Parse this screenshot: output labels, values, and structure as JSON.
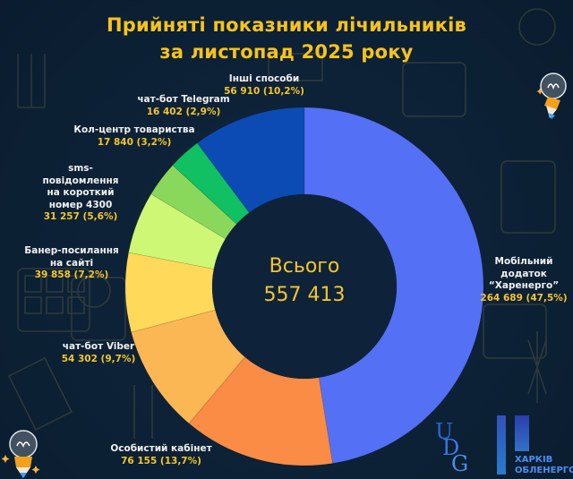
{
  "title": {
    "line1": "Прийняті показники лічильників",
    "line2": "за листопад 2025 року"
  },
  "center": {
    "label": "Всього",
    "value": "557 413"
  },
  "colors": {
    "background": "#0d2236",
    "title": "#f7c21b",
    "value_text": "#f5c52a",
    "label_text": "#f1f1f1"
  },
  "chart_data": {
    "type": "pie",
    "variant": "donut",
    "title": "Прийняті показники лічильників за листопад 2025 року",
    "total_label": "Всього",
    "total": 557413,
    "start_angle": "12 o'clock",
    "direction": "clockwise",
    "slices": [
      {
        "name": "Мобільний додаток “Харенерго”",
        "value": 264689,
        "percent": 47.5,
        "color": "#5470f5",
        "label": "264 689 (47,5%)"
      },
      {
        "name": "Особистий кабінет",
        "value": 76155,
        "percent": 13.7,
        "color": "#fa8c45",
        "label": "76 155 (13,7%)"
      },
      {
        "name": "чат-бот Viber",
        "value": 54302,
        "percent": 9.7,
        "color": "#fbb753",
        "label": "54 302 (9,7%)"
      },
      {
        "name": "Банер-посилання на сайті",
        "value": 39858,
        "percent": 7.2,
        "color": "#fed95a",
        "label": "39 858 (7,2%)"
      },
      {
        "name": "sms-повідомлення на короткий номер 4300",
        "value": 31257,
        "percent": 5.6,
        "color": "#cdf775",
        "label": "31 257 (5,6%)"
      },
      {
        "name": "Кол-центр товариства",
        "value": 17840,
        "percent": 3.2,
        "color": "#8ad85b",
        "label": "17 840 (3,2%)"
      },
      {
        "name": "чат-бот Telegram",
        "value": 16402,
        "percent": 2.9,
        "color": "#10c062",
        "label": "16 402 (2,9%)"
      },
      {
        "name": "Інші способи",
        "value": 56910,
        "percent": 10.2,
        "color": "#0d4bb4",
        "label": "56 910 (10,2%)"
      }
    ],
    "legend": "direct labels around the ring"
  },
  "labels": [
    {
      "name_lines": [
        "Мобільний",
        "додаток",
        "“Харенерго”"
      ],
      "value": "264 689 (47,5%)"
    },
    {
      "name_lines": [
        "Особистий кабінет"
      ],
      "value": "76 155 (13,7%)"
    },
    {
      "name_lines": [
        "чат-бот Viber"
      ],
      "value": "54 302 (9,7%)"
    },
    {
      "name_lines": [
        "Банер-посилання",
        "на сайті"
      ],
      "value": "39 858 (7,2%)"
    },
    {
      "name_lines": [
        "sms-повідомлення",
        "на короткий",
        "номер 4300"
      ],
      "value": "31 257 (5,6%)"
    },
    {
      "name_lines": [
        "Кол-центр товариства"
      ],
      "value": "17 840 (3,2%)"
    },
    {
      "name_lines": [
        "чат-бот Telegram"
      ],
      "value": "16 402 (2,9%)"
    },
    {
      "name_lines": [
        "Інші способи"
      ],
      "value": "56 910 (10,2%)"
    }
  ],
  "logo": {
    "mark": "UDG",
    "line1": "ХАРКІВ",
    "line2": "ОБЛЕНЕРГО"
  }
}
